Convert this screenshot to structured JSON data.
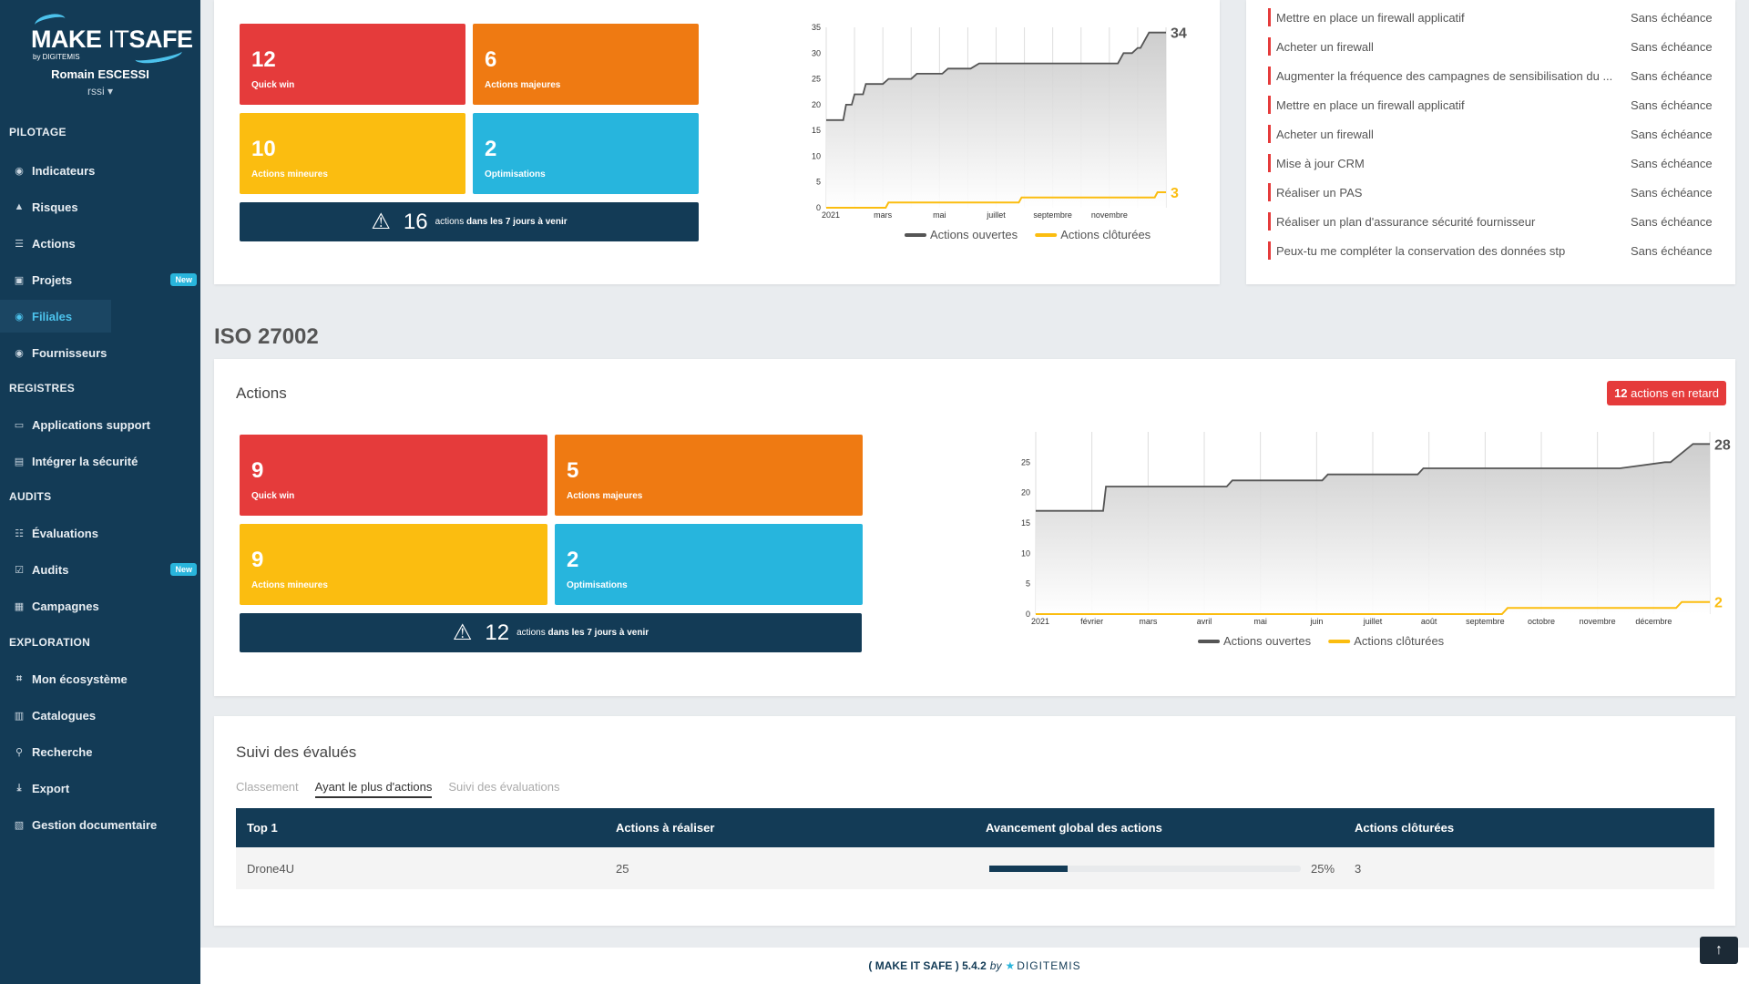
{
  "brand": {
    "logo_make": "MAKE",
    "logo_it": "IT",
    "logo_safe": "SAFE",
    "logo_by": "by DIGITEMIS",
    "accent": "#4cc2ec"
  },
  "user": {
    "name": "Romain ESCESSI",
    "role": "rssi"
  },
  "nav": {
    "sections": {
      "pilotage": "PILOTAGE",
      "registres": "REGISTRES",
      "audits": "AUDITS",
      "exploration": "EXPLORATION"
    },
    "items": [
      {
        "label": "Indicateurs",
        "icon": "dashboard-icon"
      },
      {
        "label": "Risques",
        "icon": "warning-icon"
      },
      {
        "label": "Actions",
        "icon": "list-icon"
      },
      {
        "label": "Projets",
        "icon": "project-icon",
        "badge": "New"
      },
      {
        "label": "Filiales",
        "icon": "dashboard-icon",
        "active": true
      },
      {
        "label": "Fournisseurs",
        "icon": "dashboard-icon"
      },
      {
        "label": "Applications support",
        "icon": "monitor-icon"
      },
      {
        "label": "Intégrer la sécurité",
        "icon": "shield-icon"
      },
      {
        "label": "Évaluations",
        "icon": "list-check-icon"
      },
      {
        "label": "Audits",
        "icon": "checkbox-icon",
        "badge": "New"
      },
      {
        "label": "Campagnes",
        "icon": "calendar-icon"
      },
      {
        "label": "Mon écosystème",
        "icon": "sitemap-icon"
      },
      {
        "label": "Catalogues",
        "icon": "book-icon"
      },
      {
        "label": "Recherche",
        "icon": "search-icon"
      },
      {
        "label": "Export",
        "icon": "download-icon"
      },
      {
        "label": "Gestion documentaire",
        "icon": "document-icon"
      }
    ]
  },
  "top_block": {
    "tiles": [
      {
        "value": "12",
        "label": "Quick win",
        "color": "#e53b3b"
      },
      {
        "value": "6",
        "label": "Actions majeures",
        "color": "#ef7a12"
      },
      {
        "value": "10",
        "label": "Actions mineures",
        "color": "#fbbd10"
      },
      {
        "value": "2",
        "label": "Optimisations",
        "color": "#27b5dd"
      }
    ],
    "alert": {
      "count": "16",
      "pre": "actions",
      "bold": "dans les 7 jours à venir"
    }
  },
  "action_list": [
    {
      "text": "Mettre en place un firewall applicatif",
      "due": "Sans échéance"
    },
    {
      "text": "Acheter un firewall",
      "due": "Sans échéance"
    },
    {
      "text": "Augmenter la fréquence des campagnes de sensibilisation du ...",
      "due": "Sans échéance"
    },
    {
      "text": "Mettre en place un firewall applicatif",
      "due": "Sans échéance"
    },
    {
      "text": "Acheter un firewall",
      "due": "Sans échéance"
    },
    {
      "text": "Mise à jour CRM",
      "due": "Sans échéance"
    },
    {
      "text": "Réaliser un PAS",
      "due": "Sans échéance"
    },
    {
      "text": "Réaliser un plan d'assurance sécurité fournisseur",
      "due": "Sans échéance"
    },
    {
      "text": "Peux-tu me compléter la conservation des données stp",
      "due": "Sans échéance"
    }
  ],
  "iso": {
    "section_title": "ISO 27002",
    "card_title": "Actions",
    "late_badge": {
      "count": "12",
      "text": "actions en retard"
    },
    "tiles": [
      {
        "value": "9",
        "label": "Quick win",
        "color": "#e53b3b"
      },
      {
        "value": "5",
        "label": "Actions majeures",
        "color": "#ef7a12"
      },
      {
        "value": "9",
        "label": "Actions mineures",
        "color": "#fbbd10"
      },
      {
        "value": "2",
        "label": "Optimisations",
        "color": "#27b5dd"
      }
    ],
    "alert": {
      "count": "12",
      "pre": "actions",
      "bold": "dans les 7 jours à venir"
    }
  },
  "chart_data": [
    {
      "type": "line",
      "x_ticks": [
        "2021",
        "mars",
        "mai",
        "juillet",
        "septembre",
        "novembre"
      ],
      "y_ticks": [
        "0",
        "5",
        "10",
        "15",
        "20",
        "25",
        "30",
        "35"
      ],
      "ylim": [
        0,
        35
      ],
      "x_domain": [
        0,
        12
      ],
      "grid": true,
      "legend": "bottom",
      "end_labels": [
        "34",
        "3"
      ],
      "series": [
        {
          "name": "Actions ouvertes",
          "color": "#555555",
          "x": [
            0,
            0.6,
            0.7,
            0.9,
            1.0,
            1.3,
            1.4,
            2.0,
            2.2,
            3.0,
            3.2,
            4.1,
            4.3,
            5.1,
            5.4,
            6.5,
            6.7,
            10.3,
            10.5,
            10.8,
            11.0,
            11.1,
            11.4,
            11.6,
            12.0
          ],
          "values": [
            17,
            17,
            20,
            20,
            22,
            22,
            24,
            24,
            25,
            25,
            26,
            26,
            27,
            27,
            28,
            28,
            28,
            28,
            30,
            30,
            31,
            31,
            34,
            34,
            34
          ]
        },
        {
          "name": "Actions clôturées",
          "color": "#fbbd10",
          "x": [
            0,
            2.1,
            2.2,
            6.8,
            6.9,
            10.8,
            11.0,
            11.6,
            11.7,
            12.0
          ],
          "values": [
            0,
            0,
            1,
            1,
            2,
            2,
            2,
            2,
            3,
            3
          ]
        }
      ]
    },
    {
      "type": "line",
      "x_ticks": [
        "2021",
        "février",
        "mars",
        "avril",
        "mai",
        "juin",
        "juillet",
        "août",
        "septembre",
        "octobre",
        "novembre",
        "décembre"
      ],
      "y_ticks": [
        "0",
        "5",
        "10",
        "15",
        "20",
        "25"
      ],
      "ylim": [
        0,
        30
      ],
      "x_domain": [
        0,
        12
      ],
      "grid": true,
      "legend": "bottom",
      "end_labels": [
        "28",
        "2"
      ],
      "series": [
        {
          "name": "Actions ouvertes",
          "color": "#555555",
          "x": [
            0,
            1.2,
            1.25,
            3.4,
            3.5,
            5.1,
            5.2,
            6.8,
            6.9,
            10.3,
            10.4,
            11.2,
            11.3,
            11.7,
            12.0
          ],
          "values": [
            17,
            17,
            21,
            21,
            22,
            22,
            23,
            23,
            24,
            24,
            24,
            25,
            25,
            28,
            28
          ]
        },
        {
          "name": "Actions clôturées",
          "color": "#fbbd10",
          "x": [
            0,
            8.3,
            8.4,
            11.4,
            11.5,
            12.0
          ],
          "values": [
            0,
            0,
            1,
            1,
            2,
            2
          ]
        }
      ]
    }
  ],
  "suivi": {
    "title": "Suivi des évalués",
    "tabs": [
      "Classement",
      "Ayant le plus d'actions",
      "Suivi des évaluations"
    ],
    "active_tab": 1,
    "columns": [
      "Top 1",
      "Actions à réaliser",
      "Avancement global des actions",
      "Actions clôturées"
    ],
    "rows": [
      {
        "name": "Drone4U",
        "todo": "25",
        "progress": 0.25,
        "progress_label": "25%",
        "closed": "3"
      }
    ]
  },
  "footer": {
    "open": "( MAKE IT SAFE )",
    "version": "5.4.2",
    "by": "by",
    "company": "DIGITEMIS"
  },
  "scroll_top_icon": "arrow-up-icon"
}
